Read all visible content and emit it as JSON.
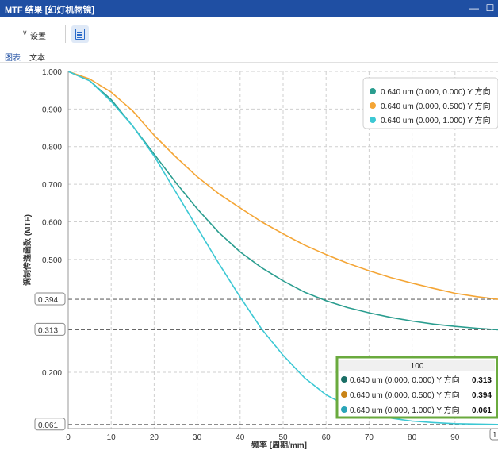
{
  "window": {
    "title": "MTF 结果 [幻灯机物镜]",
    "minimize_glyph": "—",
    "maximize_glyph": "☐"
  },
  "toolbar": {
    "settings_label": "设置",
    "chevron_glyph": "∨",
    "view_icon": "document-list-icon"
  },
  "tabs": [
    {
      "label": "图表",
      "active": true
    },
    {
      "label": "文本",
      "active": false
    }
  ],
  "chart_data": {
    "type": "line",
    "xlabel": "频率 [周期/mm]",
    "ylabel": "调制传递函数 (MTF)",
    "xlim": [
      0,
      100
    ],
    "ylim": [
      0.05,
      1.0
    ],
    "x_ticks": [
      0,
      10,
      20,
      30,
      40,
      50,
      60,
      70,
      80,
      90
    ],
    "x_tick_labels": [
      "0",
      "10",
      "20",
      "30",
      "40",
      "50",
      "60",
      "70",
      "80",
      "90"
    ],
    "x_cursor_label": "1",
    "y_ticks": [
      1.0,
      0.9,
      0.8,
      0.7,
      0.6,
      0.5,
      0.2
    ],
    "y_tick_labels": [
      "1.000",
      "0.900",
      "0.800",
      "0.700",
      "0.600",
      "0.500",
      "0.200"
    ],
    "y_markers": [
      {
        "value": 0.394,
        "label": "0.394"
      },
      {
        "value": 0.313,
        "label": "0.313"
      },
      {
        "value": 0.061,
        "label": "0.061"
      }
    ],
    "grid": true,
    "legend_position": "top-right",
    "x": [
      0,
      5,
      10,
      15,
      20,
      25,
      30,
      35,
      40,
      45,
      50,
      55,
      60,
      65,
      70,
      75,
      80,
      85,
      90,
      95,
      100
    ],
    "series": [
      {
        "name": "0.640 um (0.000, 0.000) Y 方向",
        "color": "#2a9d8f",
        "values": [
          1.0,
          0.975,
          0.925,
          0.855,
          0.78,
          0.705,
          0.635,
          0.572,
          0.52,
          0.478,
          0.443,
          0.413,
          0.39,
          0.372,
          0.358,
          0.346,
          0.336,
          0.328,
          0.322,
          0.317,
          0.313
        ]
      },
      {
        "name": "0.640 um (0.000, 0.500) Y 方向",
        "color": "#f4a535",
        "values": [
          1.0,
          0.98,
          0.945,
          0.895,
          0.83,
          0.773,
          0.72,
          0.675,
          0.637,
          0.6,
          0.568,
          0.538,
          0.513,
          0.49,
          0.47,
          0.452,
          0.437,
          0.423,
          0.41,
          0.401,
          0.394
        ]
      },
      {
        "name": "0.640 um (0.000, 1.000) Y 方向",
        "color": "#3cc8d4",
        "values": [
          1.0,
          0.975,
          0.92,
          0.855,
          0.775,
          0.68,
          0.585,
          0.49,
          0.4,
          0.315,
          0.245,
          0.185,
          0.14,
          0.11,
          0.09,
          0.078,
          0.07,
          0.066,
          0.063,
          0.062,
          0.061
        ]
      }
    ],
    "cursor_readout": {
      "title": "100",
      "rows": [
        {
          "label": "0.640 um (0.000, 0.000) Y 方向",
          "value": "0.313",
          "color": "#1b6f66"
        },
        {
          "label": "0.640 um (0.000, 0.500) Y 方向",
          "value": "0.394",
          "color": "#c98417"
        },
        {
          "label": "0.640 um (0.000, 1.000) Y 方向",
          "value": "0.061",
          "color": "#2aa5b8"
        }
      ]
    }
  }
}
